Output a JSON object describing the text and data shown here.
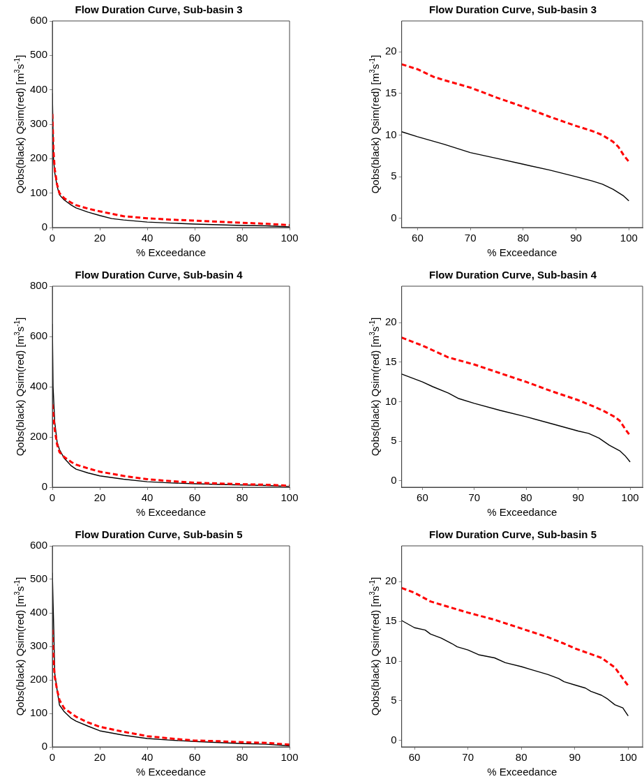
{
  "chart_data": [
    {
      "type": "line",
      "title": "Flow Duration Curve, Sub-basin 3",
      "xlabel": "% Exceedance",
      "ylabel": "Qobs(black) Qsim(red)  [m$^{3}$s$^{-1}$]",
      "xlim": [
        0,
        100
      ],
      "ylim": [
        0,
        600
      ],
      "xticks": [
        0,
        20,
        40,
        60,
        80,
        100
      ],
      "yticks": [
        0,
        100,
        200,
        300,
        400,
        500,
        600
      ],
      "grid": false,
      "series": [
        {
          "color": "#000000",
          "line_style": "solid",
          "x": [
            0,
            0.5,
            1,
            2,
            3,
            5,
            8,
            10,
            15,
            20,
            25,
            30,
            40,
            50,
            60,
            70,
            80,
            90,
            100
          ],
          "values": [
            390,
            200,
            160,
            120,
            95,
            80,
            65,
            57,
            45,
            35,
            26,
            22,
            16,
            13,
            10,
            8,
            6,
            5,
            2
          ]
        },
        {
          "color": "#ff0000",
          "line_style": "dashed",
          "x": [
            0,
            0.5,
            1,
            2,
            3,
            5,
            8,
            10,
            15,
            20,
            25,
            30,
            40,
            50,
            60,
            70,
            80,
            90,
            100
          ],
          "values": [
            330,
            220,
            170,
            125,
            100,
            85,
            72,
            65,
            55,
            47,
            40,
            33,
            27,
            23,
            20,
            17,
            14,
            11,
            7
          ]
        }
      ]
    },
    {
      "type": "line",
      "title": "Flow Duration Curve, Sub-basin 3",
      "xlabel": "% Exceedance",
      "ylabel": "Qobs(black) Qsim(red)  [m$^{3}$s$^{-1}$]",
      "xlim": [
        57,
        102.6
      ],
      "ylim": [
        -1.1,
        23.7
      ],
      "xticks": [
        60,
        70,
        80,
        90,
        100
      ],
      "yticks": [
        0,
        5,
        10,
        15,
        20
      ],
      "grid": false,
      "series": [
        {
          "color": "#000000",
          "line_style": "solid",
          "x": [
            57,
            60,
            65,
            70,
            75,
            80,
            85,
            90,
            93,
            95,
            97,
            99,
            100
          ],
          "values": [
            10.4,
            9.8,
            8.9,
            7.9,
            7.2,
            6.5,
            5.8,
            5.0,
            4.5,
            4.1,
            3.5,
            2.7,
            2.1
          ]
        },
        {
          "color": "#ff0000",
          "line_style": "dashed",
          "x": [
            57,
            60,
            63,
            65,
            70,
            75,
            80,
            85,
            90,
            93,
            95,
            97,
            98,
            99,
            100
          ],
          "values": [
            18.5,
            17.9,
            17.0,
            16.6,
            15.7,
            14.5,
            13.4,
            12.2,
            11.1,
            10.5,
            10.0,
            9.2,
            8.6,
            7.6,
            6.8
          ]
        }
      ]
    },
    {
      "type": "line",
      "title": "Flow Duration Curve, Sub-basin 4",
      "xlabel": "% Exceedance",
      "ylabel": "Qobs(black) Qsim(red)  [m$^{3}$s$^{-1}$]",
      "xlim": [
        0,
        100
      ],
      "ylim": [
        0,
        800
      ],
      "xticks": [
        0,
        20,
        40,
        60,
        80,
        100
      ],
      "yticks": [
        0,
        200,
        400,
        600,
        800
      ],
      "grid": false,
      "series": [
        {
          "color": "#000000",
          "line_style": "solid",
          "x": [
            0,
            0.3,
            1,
            2,
            3,
            5,
            8,
            10,
            15,
            20,
            30,
            40,
            50,
            60,
            70,
            80,
            90,
            100
          ],
          "values": [
            650,
            400,
            260,
            180,
            150,
            115,
            85,
            72,
            57,
            45,
            32,
            22,
            17,
            14,
            11,
            9,
            7,
            3
          ]
        },
        {
          "color": "#ff0000",
          "line_style": "dashed",
          "x": [
            0,
            1,
            2,
            3,
            5,
            8,
            10,
            15,
            20,
            30,
            40,
            50,
            60,
            70,
            80,
            90,
            100
          ],
          "values": [
            330,
            230,
            170,
            140,
            120,
            100,
            90,
            75,
            62,
            45,
            32,
            24,
            18,
            15,
            12,
            10,
            6
          ]
        }
      ]
    },
    {
      "type": "line",
      "title": "Flow Duration Curve, Sub-basin 4",
      "xlabel": "% Exceedance",
      "ylabel": "Qobs(black) Qsim(red)  [m$^{3}$s$^{-1}$]",
      "xlim": [
        56,
        102.4
      ],
      "ylim": [
        -0.8,
        24.6
      ],
      "xticks": [
        60,
        70,
        80,
        90,
        100
      ],
      "yticks": [
        0,
        5,
        10,
        15,
        20
      ],
      "grid": false,
      "series": [
        {
          "color": "#000000",
          "line_style": "solid",
          "x": [
            56,
            60,
            62,
            65,
            67,
            70,
            75,
            80,
            85,
            90,
            92,
            94,
            96,
            98,
            99,
            100
          ],
          "values": [
            13.5,
            12.5,
            11.9,
            11.1,
            10.4,
            9.8,
            8.9,
            8.1,
            7.2,
            6.3,
            6.0,
            5.4,
            4.5,
            3.8,
            3.2,
            2.4
          ]
        },
        {
          "color": "#ff0000",
          "line_style": "dashed",
          "x": [
            56,
            60,
            65,
            70,
            75,
            80,
            85,
            90,
            93,
            95,
            97,
            98,
            99,
            100
          ],
          "values": [
            18.1,
            17.1,
            15.6,
            14.7,
            13.6,
            12.5,
            11.3,
            10.2,
            9.4,
            8.8,
            8.1,
            7.6,
            6.6,
            5.7
          ]
        }
      ]
    },
    {
      "type": "line",
      "title": "Flow Duration Curve, Sub-basin 5",
      "xlabel": "% Exceedance",
      "ylabel": "Qobs(black) Qsim(red)  [m$^{3}$s$^{-1}$]",
      "xlim": [
        0,
        100
      ],
      "ylim": [
        0,
        600
      ],
      "xticks": [
        0,
        20,
        40,
        60,
        80,
        100
      ],
      "yticks": [
        0,
        100,
        200,
        300,
        400,
        500,
        600
      ],
      "grid": false,
      "series": [
        {
          "color": "#000000",
          "line_style": "solid",
          "x": [
            0,
            0.3,
            0.6,
            1,
            2,
            3,
            5,
            8,
            10,
            15,
            20,
            30,
            40,
            50,
            60,
            70,
            80,
            90,
            100
          ],
          "values": [
            520,
            430,
            350,
            220,
            170,
            125,
            105,
            85,
            77,
            62,
            48,
            35,
            25,
            20,
            16,
            13,
            10,
            8,
            3
          ]
        },
        {
          "color": "#ff0000",
          "line_style": "dashed",
          "x": [
            0,
            0.5,
            1,
            2,
            3,
            5,
            8,
            10,
            15,
            20,
            30,
            40,
            50,
            60,
            70,
            80,
            90,
            100
          ],
          "values": [
            350,
            260,
            210,
            170,
            140,
            115,
            100,
            90,
            73,
            60,
            45,
            32,
            25,
            19,
            17,
            14,
            12,
            7
          ]
        }
      ]
    },
    {
      "type": "line",
      "title": "Flow Duration Curve, Sub-basin 5",
      "xlabel": "% Exceedance",
      "ylabel": "Qobs(black) Qsim(red)  [m$^{3}$s$^{-1}$]",
      "xlim": [
        57.6,
        102.7
      ],
      "ylim": [
        -0.8,
        24.5
      ],
      "xticks": [
        60,
        70,
        80,
        90,
        100
      ],
      "yticks": [
        0,
        5,
        10,
        15,
        20
      ],
      "grid": false,
      "series": [
        {
          "color": "#000000",
          "line_style": "solid",
          "x": [
            57.6,
            60,
            62,
            63,
            65,
            67,
            68,
            70,
            72,
            75,
            77,
            80,
            82,
            85,
            87,
            88,
            90,
            92,
            93,
            95,
            96,
            97.5,
            99,
            100
          ],
          "values": [
            15.1,
            14.2,
            13.9,
            13.4,
            12.9,
            12.2,
            11.8,
            11.4,
            10.8,
            10.4,
            9.8,
            9.3,
            8.9,
            8.3,
            7.8,
            7.4,
            7.0,
            6.6,
            6.2,
            5.7,
            5.3,
            4.5,
            4.1,
            3.1
          ]
        },
        {
          "color": "#ff0000",
          "line_style": "dashed",
          "x": [
            57.6,
            60,
            63,
            65,
            70,
            75,
            80,
            85,
            88,
            90,
            95,
            97.5,
            99,
            100
          ],
          "values": [
            19.2,
            18.6,
            17.5,
            17.1,
            16.1,
            15.2,
            14.1,
            13.0,
            12.2,
            11.6,
            10.4,
            9.2,
            7.8,
            6.9
          ]
        }
      ]
    }
  ]
}
